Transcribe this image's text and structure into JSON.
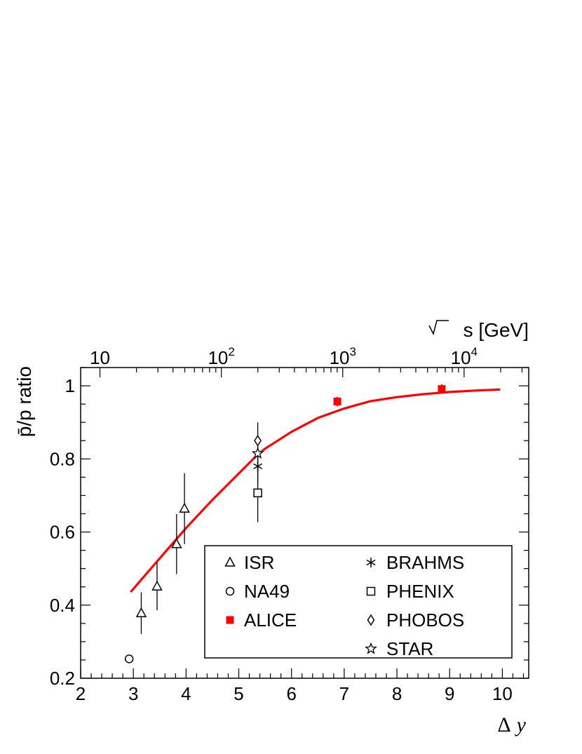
{
  "chart_data": {
    "type": "scatter",
    "xlabel_delta": "Δ",
    "xlabel_var": "y",
    "ylabel": "p̄/p ratio",
    "top_axis_label": "s [GeV]",
    "xlim": [
      2,
      10.5
    ],
    "ylim": [
      0.2,
      1.05
    ],
    "x_ticks": [
      "2",
      "3",
      "4",
      "5",
      "6",
      "7",
      "8",
      "9",
      "10"
    ],
    "y_ticks": [
      "0.2",
      "0.4",
      "0.6",
      "0.8",
      "1"
    ],
    "top_ticks": [
      {
        "base": "10",
        "exp": "",
        "sqrt_s": 10
      },
      {
        "base": "10",
        "exp": "2",
        "sqrt_s": 100
      },
      {
        "base": "10",
        "exp": "3",
        "sqrt_s": 1000
      },
      {
        "base": "10",
        "exp": "4",
        "sqrt_s": 10000
      }
    ],
    "series": [
      {
        "name": "ISR",
        "marker": "triangle",
        "color": "#000000",
        "points": [
          [
            3.15,
            0.378,
            0.057
          ],
          [
            3.45,
            0.451,
            0.065
          ],
          [
            3.82,
            0.567,
            0.082
          ],
          [
            3.97,
            0.664,
            0.097
          ]
        ]
      },
      {
        "name": "NA49",
        "marker": "circle",
        "color": "#000000",
        "points": [
          [
            2.92,
            0.253,
            0.0
          ]
        ]
      },
      {
        "name": "ALICE",
        "marker": "filled-square",
        "color": "#ff0000",
        "points": [
          [
            6.87,
            0.957,
            0.013
          ],
          [
            8.85,
            0.991,
            0.013
          ]
        ]
      },
      {
        "name": "BRAHMS",
        "marker": "asterisk",
        "color": "#000000",
        "points": [
          [
            5.36,
            0.78,
            0.05
          ]
        ]
      },
      {
        "name": "PHENIX",
        "marker": "open-square",
        "color": "#000000",
        "points": [
          [
            5.36,
            0.707,
            0.08
          ]
        ]
      },
      {
        "name": "PHOBOS",
        "marker": "diamond",
        "color": "#000000",
        "points": [
          [
            5.36,
            0.85,
            0.05
          ]
        ]
      },
      {
        "name": "STAR",
        "marker": "star",
        "color": "#000000",
        "points": [
          [
            5.36,
            0.815,
            0.05
          ]
        ]
      }
    ],
    "fit_curve": {
      "color": "#ff0000",
      "x": [
        2.95,
        3.5,
        4.0,
        4.5,
        5.0,
        5.36,
        5.5,
        6.0,
        6.5,
        7.0,
        7.5,
        8.0,
        8.5,
        9.0,
        9.5,
        9.96
      ],
      "y": [
        0.436,
        0.528,
        0.611,
        0.688,
        0.76,
        0.812,
        0.828,
        0.874,
        0.912,
        0.938,
        0.958,
        0.969,
        0.977,
        0.983,
        0.987,
        0.99
      ]
    },
    "legend": {
      "placement": "bottom-right",
      "left_column": [
        "ISR",
        "NA49",
        "ALICE"
      ],
      "right_column": [
        "BRAHMS",
        "PHENIX",
        "PHOBOS",
        "STAR"
      ]
    }
  }
}
